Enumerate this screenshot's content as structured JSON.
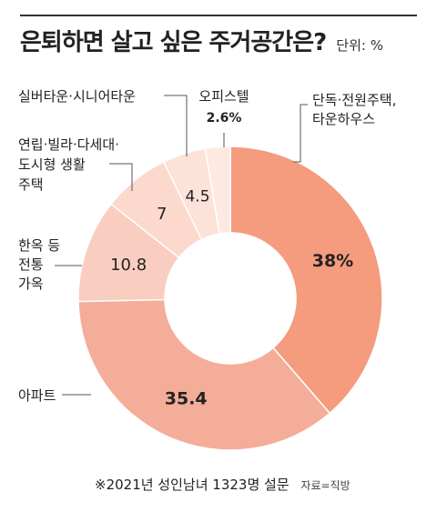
{
  "header": {
    "title": "은퇴하면 살고 싶은 주거공간은?",
    "unit": "단위: %"
  },
  "footer": {
    "note": "※2021년 성인남녀 1323명 설문",
    "source": "자료=직방"
  },
  "colors": {
    "single_house": "#f59b7e",
    "apartment": "#f4ad98",
    "hanok": "#f9cdbf",
    "villa": "#fbd9cd",
    "silver": "#fce2d8",
    "officetel": "#fde9e2",
    "leader": "#555555"
  },
  "chart_data": {
    "type": "pie",
    "title": "은퇴하면 살고 싶은 주거공간은?",
    "unit": "단위: %",
    "donut": true,
    "slices": [
      {
        "label": "단독·전원주택, 타운하우스",
        "value": 38,
        "display": "38%",
        "color": "#f59b7e"
      },
      {
        "label": "아파트",
        "value": 35.4,
        "display": "35.4",
        "color": "#f4ad98"
      },
      {
        "label": "한옥 등 전통 가옥",
        "value": 10.8,
        "display": "10.8",
        "color": "#f9cdbf"
      },
      {
        "label": "연립·빌라·다세대·도시형 생활 주택",
        "value": 7,
        "display": "7",
        "color": "#fbd9cd"
      },
      {
        "label": "실버타운·시니어타운",
        "value": 4.5,
        "display": "4.5",
        "color": "#fce2d8"
      },
      {
        "label": "오피스텔",
        "value": 2.6,
        "display": "2.6%",
        "color": "#fde9e2"
      }
    ],
    "category_labels": {
      "single_house": [
        "단독·전원주택,",
        "타운하우스"
      ],
      "apartment": [
        "아파트"
      ],
      "hanok": [
        "한옥 등",
        "전통",
        "가옥"
      ],
      "villa": [
        "연립·빌라·다세대·",
        "도시형 생활",
        "주택"
      ],
      "silver": [
        "실버타운·시니어타운"
      ],
      "officetel": [
        "오피스텔"
      ]
    }
  }
}
